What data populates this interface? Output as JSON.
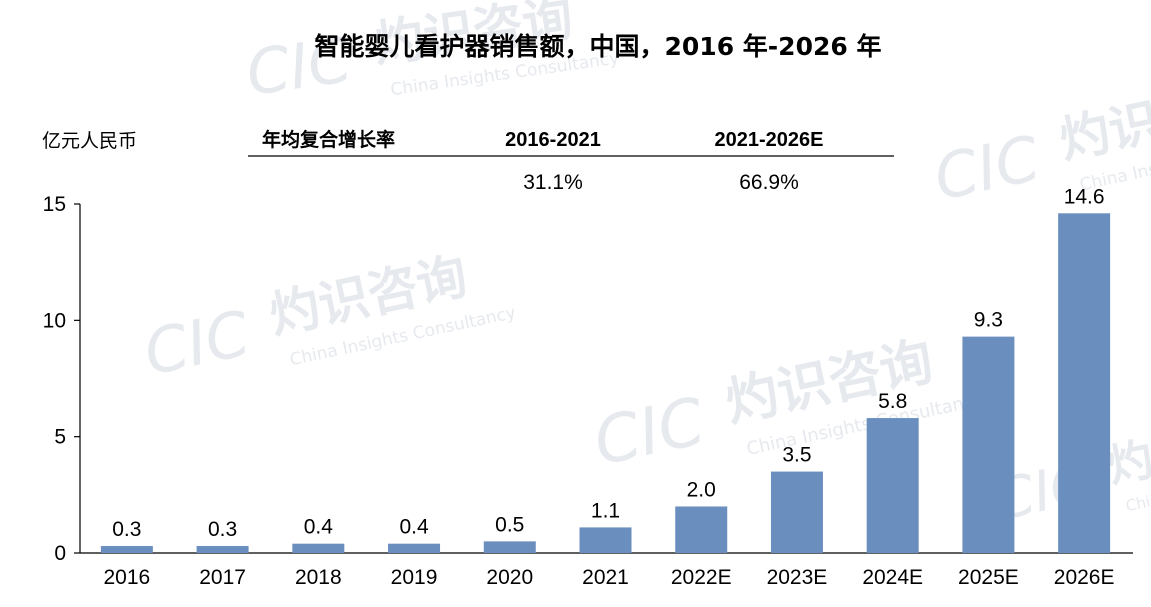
{
  "chart_data": {
    "type": "bar",
    "title": "智能婴儿看护器销售额，中国，2016 年-2026 年",
    "ylabel": "亿元人民币",
    "categories": [
      "2016",
      "2017",
      "2018",
      "2019",
      "2020",
      "2021",
      "2022E",
      "2023E",
      "2024E",
      "2025E",
      "2026E"
    ],
    "values": [
      0.3,
      0.3,
      0.4,
      0.4,
      0.5,
      1.1,
      2.0,
      3.5,
      5.8,
      9.3,
      14.6
    ],
    "value_labels": [
      "0.3",
      "0.3",
      "0.4",
      "0.4",
      "0.5",
      "1.1",
      "2.0",
      "3.5",
      "5.8",
      "9.3",
      "14.6"
    ],
    "yticks": [
      "0",
      "5",
      "10",
      "15"
    ],
    "ylim": [
      0,
      15
    ],
    "grid": false,
    "bar_color": "#6a8fbf",
    "cagr": {
      "header": "年均复合增长率",
      "periods": [
        "2016-2021",
        "2021-2026E"
      ],
      "values": [
        "31.1%",
        "66.9%"
      ]
    }
  },
  "watermark": {
    "cn": "灼识咨询",
    "en": "China Insights Consultancy",
    "logo": "CIC"
  }
}
